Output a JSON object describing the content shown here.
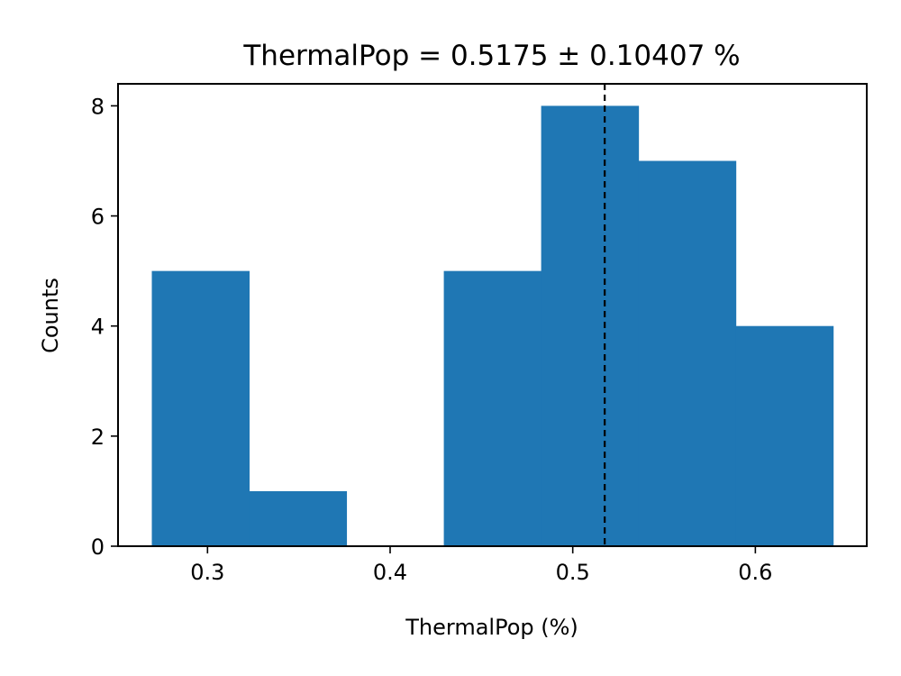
{
  "chart_data": {
    "type": "bar",
    "title": "ThermalPop = 0.5175  ± 0.10407 %",
    "xlabel": "ThermalPop (%)",
    "ylabel": "Counts",
    "xlim": [
      0.251,
      0.661
    ],
    "ylim": [
      0,
      8.4
    ],
    "xticks": [
      {
        "value": 0.3,
        "label": "0.3"
      },
      {
        "value": 0.4,
        "label": "0.4"
      },
      {
        "value": 0.5,
        "label": "0.5"
      },
      {
        "value": 0.6,
        "label": "0.6"
      }
    ],
    "yticks": [
      {
        "value": 0,
        "label": "0"
      },
      {
        "value": 2,
        "label": "2"
      },
      {
        "value": 4,
        "label": "4"
      },
      {
        "value": 6,
        "label": "6"
      },
      {
        "value": 8,
        "label": "8"
      }
    ],
    "bins": [
      {
        "x0": 0.2695,
        "x1": 0.3228,
        "count": 5
      },
      {
        "x0": 0.3228,
        "x1": 0.3761,
        "count": 1
      },
      {
        "x0": 0.3761,
        "x1": 0.4294,
        "count": 0
      },
      {
        "x0": 0.4294,
        "x1": 0.4827,
        "count": 5
      },
      {
        "x0": 0.4827,
        "x1": 0.536,
        "count": 8
      },
      {
        "x0": 0.536,
        "x1": 0.5893,
        "count": 7
      },
      {
        "x0": 0.5893,
        "x1": 0.6426,
        "count": 4
      }
    ],
    "mean_line": {
      "x": 0.5175,
      "style": "dashed"
    },
    "bar_color": "#1f77b4",
    "line_color": "#000000",
    "grid": false,
    "legend": "none"
  }
}
